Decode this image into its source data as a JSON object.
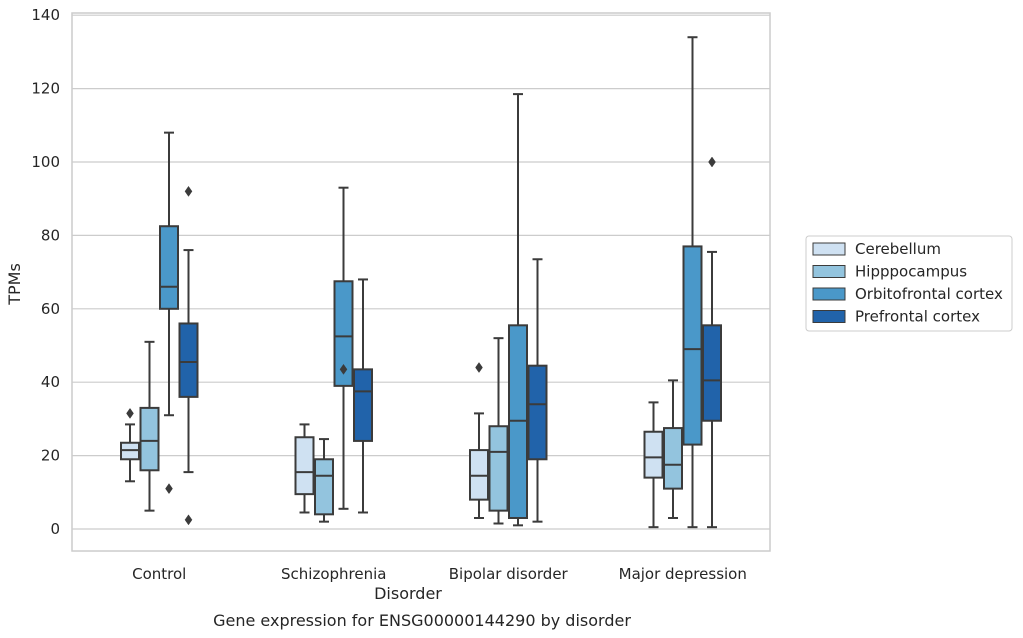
{
  "chart_data": {
    "type": "boxplot",
    "title": "Gene expression for ENSG00000144290 by disorder",
    "xlabel": "Disorder",
    "ylabel": "TPMs",
    "ylim": [
      -6,
      141
    ],
    "yticks": [
      0,
      20,
      40,
      60,
      80,
      100,
      120,
      140
    ],
    "grid": "horizontal",
    "legend_position": "right",
    "categories": [
      "Control",
      "Schizophrenia",
      "Bipolar disorder",
      "Major depression"
    ],
    "series": [
      {
        "name": "Cerebellum",
        "color": "#cfe1f2",
        "boxes": [
          {
            "whislo": 13.0,
            "q1": 19.0,
            "med": 21.5,
            "q3": 23.5,
            "whishi": 28.5,
            "fliers": [
              31.5
            ]
          },
          {
            "whislo": 4.5,
            "q1": 9.5,
            "med": 15.5,
            "q3": 25.0,
            "whishi": 28.5,
            "fliers": []
          },
          {
            "whislo": 3.0,
            "q1": 8.0,
            "med": 14.5,
            "q3": 21.5,
            "whishi": 31.5,
            "fliers": [
              44.0
            ]
          },
          {
            "whislo": 0.5,
            "q1": 14.0,
            "med": 19.5,
            "q3": 26.5,
            "whishi": 34.5,
            "fliers": []
          }
        ]
      },
      {
        "name": "Hipppocampus",
        "color": "#93c4de",
        "boxes": [
          {
            "whislo": 5.0,
            "q1": 16.0,
            "med": 24.0,
            "q3": 33.0,
            "whishi": 51.0,
            "fliers": []
          },
          {
            "whislo": 2.0,
            "q1": 4.0,
            "med": 14.5,
            "q3": 19.0,
            "whishi": 24.5,
            "fliers": []
          },
          {
            "whislo": 1.5,
            "q1": 5.0,
            "med": 21.0,
            "q3": 28.0,
            "whishi": 52.0,
            "fliers": []
          },
          {
            "whislo": 3.0,
            "q1": 11.0,
            "med": 17.5,
            "q3": 27.5,
            "whishi": 40.5,
            "fliers": []
          }
        ]
      },
      {
        "name": "Orbitofrontal cortex",
        "color": "#4a98c9",
        "boxes": [
          {
            "whislo": 31.0,
            "q1": 60.0,
            "med": 66.0,
            "q3": 82.5,
            "whishi": 108.0,
            "fliers": [
              11.0
            ]
          },
          {
            "whislo": 5.5,
            "q1": 39.0,
            "med": 52.5,
            "q3": 67.5,
            "whishi": 93.0,
            "fliers": [
              43.5
            ]
          },
          {
            "whislo": 1.0,
            "q1": 3.0,
            "med": 29.5,
            "q3": 55.5,
            "whishi": 118.5,
            "fliers": []
          },
          {
            "whislo": 0.5,
            "q1": 23.0,
            "med": 49.0,
            "q3": 77.0,
            "whishi": 134.0,
            "fliers": []
          }
        ]
      },
      {
        "name": "Prefrontal cortex",
        "color": "#2163aa",
        "boxes": [
          {
            "whislo": 15.5,
            "q1": 36.0,
            "med": 45.5,
            "q3": 56.0,
            "whishi": 76.0,
            "fliers": [
              92.0,
              2.5
            ]
          },
          {
            "whislo": 4.5,
            "q1": 24.0,
            "med": 37.5,
            "q3": 43.5,
            "whishi": 68.0,
            "fliers": []
          },
          {
            "whislo": 2.0,
            "q1": 19.0,
            "med": 34.0,
            "q3": 44.5,
            "whishi": 73.5,
            "fliers": []
          },
          {
            "whislo": 0.5,
            "q1": 29.5,
            "med": 40.5,
            "q3": 55.5,
            "whishi": 75.5,
            "fliers": [
              100.0
            ]
          }
        ]
      }
    ]
  }
}
